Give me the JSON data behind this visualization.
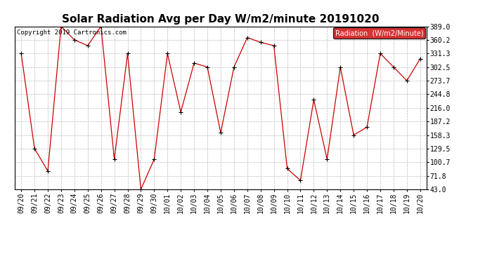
{
  "title": "Solar Radiation Avg per Day W/m2/minute 20191020",
  "copyright": "Copyright 2019 Cartronics.com",
  "legend_label": "Radiation  (W/m2/Minute)",
  "legend_bg": "#cc0000",
  "legend_text_color": "#ffffff",
  "line_color": "#cc0000",
  "marker_color": "#000000",
  "bg_color": "#ffffff",
  "plot_bg_color": "#ffffff",
  "grid_color": "#bbbbbb",
  "dates": [
    "09/20",
    "09/21",
    "09/22",
    "09/23",
    "09/24",
    "09/25",
    "09/26",
    "09/27",
    "09/28",
    "09/29",
    "09/30",
    "10/01",
    "10/02",
    "10/03",
    "10/04",
    "10/05",
    "10/06",
    "10/07",
    "10/08",
    "10/09",
    "10/10",
    "10/11",
    "10/12",
    "10/13",
    "10/14",
    "10/15",
    "10/16",
    "10/17",
    "10/18",
    "10/19",
    "10/20"
  ],
  "values": [
    331.3,
    129.5,
    82.0,
    389.0,
    360.2,
    348.0,
    389.0,
    107.0,
    331.3,
    43.0,
    107.0,
    331.3,
    207.0,
    311.0,
    302.5,
    163.0,
    302.5,
    365.0,
    355.0,
    348.0,
    87.0,
    62.0,
    233.0,
    107.0,
    302.5,
    158.3,
    175.0,
    331.3,
    302.5,
    273.7,
    320.0
  ],
  "ylim": [
    43.0,
    389.0
  ],
  "yticks": [
    43.0,
    71.8,
    100.7,
    129.5,
    158.3,
    187.2,
    216.0,
    244.8,
    273.7,
    302.5,
    331.3,
    360.2,
    389.0
  ],
  "title_fontsize": 11,
  "tick_fontsize": 7,
  "copyright_fontsize": 6.5,
  "legend_fontsize": 7
}
